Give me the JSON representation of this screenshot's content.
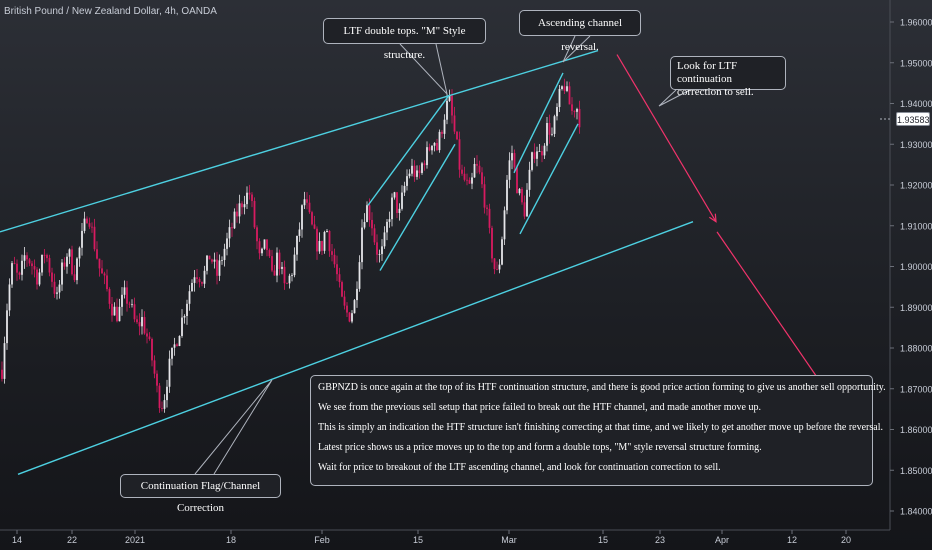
{
  "header": {
    "title": "British Pound / New Zealand Dollar, 4h, OANDA"
  },
  "chart_data": {
    "type": "candlestick",
    "symbol": "GBPNZD",
    "timeframe": "4h",
    "source": "OANDA",
    "x_ticks": [
      "14",
      "22",
      "2021",
      "18",
      "Feb",
      "15",
      "Mar",
      "15",
      "23",
      "Apr",
      "12",
      "20"
    ],
    "y_ticks": [
      "1.96000",
      "1.95000",
      "1.94000",
      "1.93000",
      "1.92000",
      "1.91000",
      "1.90000",
      "1.89000",
      "1.88000",
      "1.87000",
      "1.86000",
      "1.85000",
      "1.84000"
    ],
    "ylim": [
      1.8365,
      1.9665
    ],
    "last_price": "1.93583",
    "price_path": [
      [
        0,
        1.868
      ],
      [
        3,
        1.878
      ],
      [
        8,
        1.893
      ],
      [
        13,
        1.901
      ],
      [
        19,
        1.896
      ],
      [
        25,
        1.903
      ],
      [
        31,
        1.901
      ],
      [
        38,
        1.897
      ],
      [
        45,
        1.904
      ],
      [
        51,
        1.898
      ],
      [
        57,
        1.892
      ],
      [
        62,
        1.899
      ],
      [
        68,
        1.904
      ],
      [
        74,
        1.898
      ],
      [
        82,
        1.907
      ],
      [
        88,
        1.914
      ],
      [
        94,
        1.906
      ],
      [
        100,
        1.899
      ],
      [
        106,
        1.895
      ],
      [
        112,
        1.89
      ],
      [
        118,
        1.888
      ],
      [
        124,
        1.893
      ],
      [
        130,
        1.891
      ],
      [
        136,
        1.885
      ],
      [
        142,
        1.887
      ],
      [
        148,
        1.882
      ],
      [
        153,
        1.876
      ],
      [
        158,
        1.868
      ],
      [
        163,
        1.866
      ],
      [
        168,
        1.874
      ],
      [
        174,
        1.88
      ],
      [
        181,
        1.886
      ],
      [
        188,
        1.893
      ],
      [
        195,
        1.899
      ],
      [
        203,
        1.897
      ],
      [
        210,
        1.903
      ],
      [
        217,
        1.898
      ],
      [
        224,
        1.904
      ],
      [
        231,
        1.909
      ],
      [
        237,
        1.913
      ],
      [
        244,
        1.917
      ],
      [
        250,
        1.918
      ],
      [
        255,
        1.909
      ],
      [
        260,
        1.901
      ],
      [
        266,
        1.906
      ],
      [
        272,
        1.897
      ],
      [
        278,
        1.903
      ],
      [
        285,
        1.894
      ],
      [
        292,
        1.899
      ],
      [
        298,
        1.907
      ],
      [
        304,
        1.917
      ],
      [
        310,
        1.911
      ],
      [
        316,
        1.906
      ],
      [
        321,
        1.904
      ],
      [
        326,
        1.91
      ],
      [
        331,
        1.904
      ],
      [
        336,
        1.899
      ],
      [
        341,
        1.892
      ],
      [
        345,
        1.889
      ],
      [
        349,
        1.888
      ],
      [
        354,
        1.89
      ],
      [
        358,
        1.899
      ],
      [
        362,
        1.91
      ],
      [
        366,
        1.915
      ],
      [
        371,
        1.912
      ],
      [
        375,
        1.906
      ],
      [
        379,
        1.902
      ],
      [
        383,
        1.904
      ],
      [
        387,
        1.91
      ],
      [
        391,
        1.915
      ],
      [
        395,
        1.917
      ],
      [
        399,
        1.912
      ],
      [
        403,
        1.918
      ],
      [
        408,
        1.923
      ],
      [
        413,
        1.924
      ],
      [
        418,
        1.921
      ],
      [
        423,
        1.926
      ],
      [
        428,
        1.928
      ],
      [
        433,
        1.932
      ],
      [
        437,
        1.929
      ],
      [
        441,
        1.933
      ],
      [
        445,
        1.938
      ],
      [
        449,
        1.941
      ],
      [
        453,
        1.935
      ],
      [
        457,
        1.929
      ],
      [
        461,
        1.922
      ],
      [
        465,
        1.921
      ],
      [
        470,
        1.918
      ],
      [
        475,
        1.925
      ],
      [
        480,
        1.922
      ],
      [
        485,
        1.916
      ],
      [
        488,
        1.91
      ],
      [
        491,
        1.905
      ],
      [
        494,
        1.9
      ],
      [
        497,
        1.898
      ],
      [
        500,
        1.902
      ],
      [
        504,
        1.913
      ],
      [
        508,
        1.924
      ],
      [
        512,
        1.928
      ],
      [
        516,
        1.921
      ],
      [
        520,
        1.917
      ],
      [
        524,
        1.913
      ],
      [
        528,
        1.92
      ],
      [
        532,
        1.926
      ],
      [
        536,
        1.93
      ],
      [
        540,
        1.927
      ],
      [
        544,
        1.931
      ],
      [
        548,
        1.935
      ],
      [
        552,
        1.932
      ],
      [
        556,
        1.937
      ],
      [
        560,
        1.942
      ],
      [
        564,
        1.945
      ],
      [
        568,
        1.941
      ],
      [
        572,
        1.938
      ],
      [
        576,
        1.94
      ],
      [
        580,
        1.9358
      ]
    ],
    "drawings": [
      {
        "kind": "trendline",
        "role": "HTF channel top",
        "from": [
          0,
          1.9085
        ],
        "to": [
          598,
          1.953
        ]
      },
      {
        "kind": "trendline",
        "role": "HTF channel bottom",
        "from": [
          18,
          1.849
        ],
        "to": [
          693,
          1.911
        ]
      },
      {
        "kind": "trendline",
        "role": "LTF channel 1 lower",
        "from": [
          380,
          1.899
        ],
        "to": [
          455,
          1.93
        ]
      },
      {
        "kind": "trendline",
        "role": "LTF channel 1 upper",
        "from": [
          368,
          1.915
        ],
        "to": [
          449,
          1.942
        ]
      },
      {
        "kind": "trendline",
        "role": "LTF channel 2 lower",
        "from": [
          520,
          1.908
        ],
        "to": [
          578,
          1.935
        ]
      },
      {
        "kind": "trendline",
        "role": "LTF channel 2 upper",
        "from": [
          514,
          1.923
        ],
        "to": [
          563,
          1.9475
        ]
      },
      {
        "kind": "arrow",
        "role": "projected sell move",
        "from": [
          617,
          1.952
        ],
        "to": [
          716,
          1.911
        ]
      },
      {
        "kind": "arrow",
        "role": "projected sell move",
        "from": [
          717,
          1.9085
        ],
        "to": [
          832,
          1.8675
        ]
      }
    ]
  },
  "annotations": {
    "double_tops": "LTF double tops. \"M\" Style structure.",
    "channel_reversal": "Ascending channel reversal.",
    "look_for": "Look for LTF continuation correction to sell.",
    "flag": "Continuation Flag/Channel Correction"
  },
  "analysis": [
    "GBPNZD is once again at the top of its HTF continuation structure, and there is good price action forming to give us another sell opportunity.",
    "We see from the previous sell setup that price failed to break out the HTF channel, and made another move up.",
    "This is simply an indication the HTF structure isn't finishing correcting at that time, and we likely to get another move up before the reversal.",
    "Latest price shows us a price moves up to the top and form a double tops, \"M\" style reversal structure forming.",
    "Wait for price to breakout of the LTF ascending channel, and look for continuation correction to sell."
  ],
  "colors": {
    "up_candle": "#e6e6ea",
    "down_candle": "#d81b60",
    "channel": "#4dd0e1",
    "arrow": "#f0336b",
    "axis_text": "#c7ccd6"
  }
}
